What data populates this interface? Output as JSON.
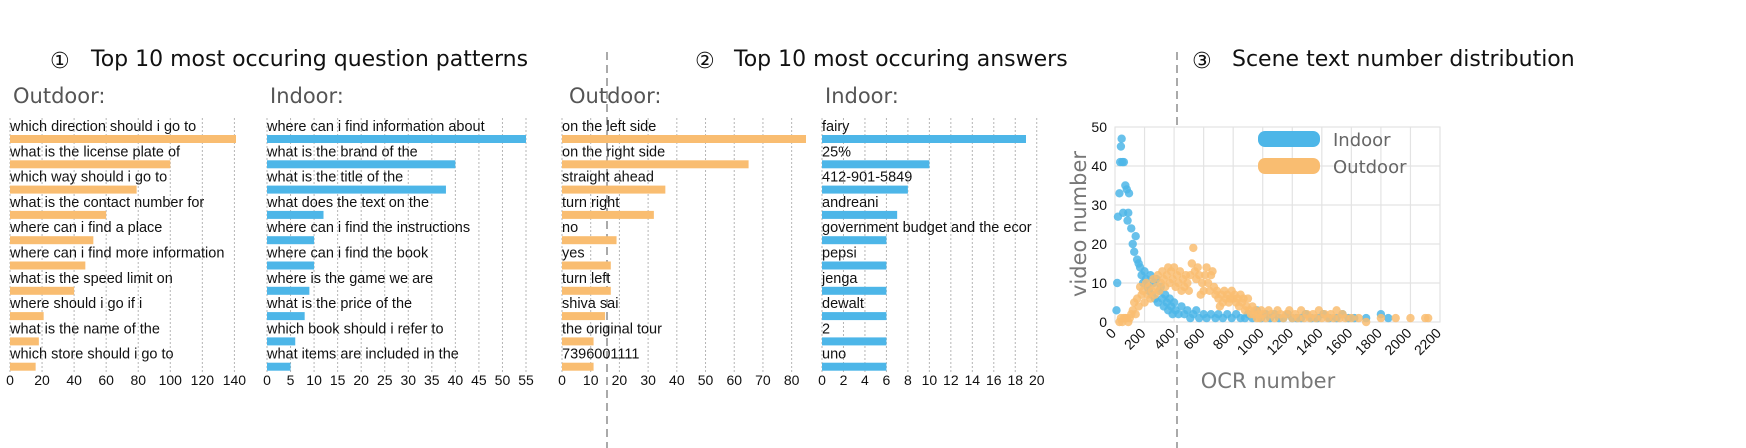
{
  "colors": {
    "outdoor": "#f9bd71",
    "indoor": "#4db6e8",
    "grid": "#b5b5b5",
    "divider": "#aaaaaa"
  },
  "panels": [
    {
      "num": "①",
      "title": "Top 10 most occuring question patterns"
    },
    {
      "num": "②",
      "title": "Top 10 most occuring answers"
    },
    {
      "num": "③",
      "title": "Scene text number distribution"
    }
  ],
  "chart_data": [
    {
      "type": "bar",
      "orientation": "horizontal",
      "group": "Outdoor:",
      "series": "Outdoor",
      "categories": [
        "which direction should i go to",
        "what is the license plate of",
        "which way should i go to",
        "what is the contact number for",
        "where can i find a place",
        "where can i find more information",
        "what is the speed limit on",
        "where should i go if i",
        "what is the name of the",
        "which store should i go to"
      ],
      "values": [
        141,
        100,
        79,
        60,
        52,
        47,
        40,
        21,
        18,
        16
      ],
      "xticks": [
        0,
        20,
        40,
        60,
        80,
        100,
        120,
        140
      ],
      "xlim": [
        0,
        150
      ]
    },
    {
      "type": "bar",
      "orientation": "horizontal",
      "group": "Indoor:",
      "series": "Indoor",
      "categories": [
        "where can i find information about",
        "what is the brand of the",
        "what is the title of the",
        "what does the text on the",
        "where can i find the instructions",
        "where can i find the book",
        "where is the game we are",
        "what is the price of the",
        "which book should i refer to",
        "what items are included in the"
      ],
      "values": [
        55,
        40,
        38,
        12,
        10,
        10,
        9,
        8,
        6,
        5
      ],
      "xticks": [
        0,
        5,
        10,
        15,
        20,
        25,
        30,
        35,
        40,
        45,
        50,
        55
      ],
      "xlim": [
        0,
        57
      ]
    },
    {
      "type": "bar",
      "orientation": "horizontal",
      "group": "Outdoor:",
      "series": "Outdoor",
      "categories": [
        "on the left side",
        "on the right side",
        "straight ahead",
        "turn right",
        "no",
        "yes",
        "turn left",
        "shiva sai",
        "the original tour",
        "7396001111"
      ],
      "values": [
        85,
        65,
        36,
        32,
        19,
        17,
        17,
        15,
        11,
        11
      ],
      "xticks": [
        0,
        10,
        20,
        30,
        40,
        50,
        60,
        70,
        80
      ],
      "xlim": [
        0,
        86
      ]
    },
    {
      "type": "bar",
      "orientation": "horizontal",
      "group": "Indoor:",
      "series": "Indoor",
      "categories": [
        "fairy",
        "25%",
        "412-901-5849",
        "andreani",
        "government budget and the ecor",
        "pepsi",
        "jenga",
        "dewalt",
        "2",
        "uno"
      ],
      "values": [
        19,
        10,
        8,
        7,
        6,
        6,
        6,
        6,
        6,
        6
      ],
      "xticks": [
        0,
        2,
        4,
        6,
        8,
        10,
        12,
        14,
        16,
        18,
        20
      ],
      "xlim": [
        0,
        20.5
      ]
    },
    {
      "type": "scatter",
      "xlabel": "OCR number",
      "ylabel": "video number",
      "xlim": [
        0,
        2200
      ],
      "ylim": [
        0,
        50
      ],
      "xticks": [
        0,
        200,
        400,
        600,
        800,
        1000,
        1200,
        1400,
        1600,
        1800,
        2000,
        2200
      ],
      "yticks": [
        0,
        10,
        20,
        30,
        40,
        50
      ],
      "legend": [
        "Indoor",
        "Outdoor"
      ],
      "legend_loc": "upper-center",
      "grid": true,
      "series": [
        {
          "name": "Indoor",
          "points": [
            [
              10,
              3
            ],
            [
              15,
              10
            ],
            [
              20,
              27
            ],
            [
              30,
              33
            ],
            [
              35,
              41
            ],
            [
              40,
              45
            ],
            [
              45,
              47
            ],
            [
              50,
              41
            ],
            [
              55,
              28
            ],
            [
              60,
              41
            ],
            [
              70,
              35
            ],
            [
              80,
              34
            ],
            [
              85,
              26
            ],
            [
              90,
              28
            ],
            [
              95,
              33
            ],
            [
              110,
              24
            ],
            [
              120,
              20
            ],
            [
              130,
              18
            ],
            [
              140,
              22
            ],
            [
              150,
              16
            ],
            [
              160,
              15
            ],
            [
              170,
              14
            ],
            [
              180,
              12
            ],
            [
              190,
              10
            ],
            [
              200,
              13
            ],
            [
              210,
              11
            ],
            [
              220,
              9
            ],
            [
              230,
              8
            ],
            [
              240,
              12
            ],
            [
              250,
              7
            ],
            [
              260,
              10
            ],
            [
              270,
              6
            ],
            [
              280,
              11
            ],
            [
              290,
              5
            ],
            [
              300,
              8
            ],
            [
              310,
              9
            ],
            [
              320,
              6
            ],
            [
              330,
              4
            ],
            [
              340,
              7
            ],
            [
              350,
              5
            ],
            [
              360,
              3
            ],
            [
              370,
              6
            ],
            [
              380,
              4
            ],
            [
              390,
              2
            ],
            [
              400,
              5
            ],
            [
              410,
              3
            ],
            [
              430,
              2
            ],
            [
              450,
              4
            ],
            [
              470,
              2
            ],
            [
              490,
              3
            ],
            [
              510,
              1
            ],
            [
              530,
              2
            ],
            [
              550,
              3
            ],
            [
              570,
              1
            ],
            [
              600,
              2
            ],
            [
              620,
              1
            ],
            [
              650,
              2
            ],
            [
              680,
              1
            ],
            [
              700,
              2
            ],
            [
              730,
              1
            ],
            [
              760,
              2
            ],
            [
              790,
              1
            ],
            [
              820,
              2
            ],
            [
              850,
              1
            ],
            [
              880,
              1
            ],
            [
              900,
              2
            ],
            [
              930,
              1
            ],
            [
              960,
              3
            ],
            [
              990,
              1
            ],
            [
              1020,
              2
            ],
            [
              1050,
              1
            ],
            [
              1080,
              2
            ],
            [
              1110,
              1
            ],
            [
              1140,
              1
            ],
            [
              1170,
              2
            ],
            [
              1200,
              1
            ],
            [
              1230,
              1
            ],
            [
              1260,
              1
            ],
            [
              1290,
              2
            ],
            [
              1330,
              1
            ],
            [
              1370,
              1
            ],
            [
              1410,
              2
            ],
            [
              1450,
              1
            ],
            [
              1500,
              1
            ],
            [
              1540,
              2
            ],
            [
              1580,
              1
            ],
            [
              1620,
              1
            ],
            [
              1700,
              1
            ],
            [
              1800,
              2
            ],
            [
              1850,
              1
            ]
          ]
        },
        {
          "name": "Outdoor",
          "points": [
            [
              30,
              0
            ],
            [
              40,
              1
            ],
            [
              50,
              0
            ],
            [
              60,
              1
            ],
            [
              70,
              1
            ],
            [
              80,
              1
            ],
            [
              90,
              0
            ],
            [
              100,
              1
            ],
            [
              110,
              2
            ],
            [
              120,
              3
            ],
            [
              130,
              5
            ],
            [
              140,
              2
            ],
            [
              150,
              6
            ],
            [
              160,
              4
            ],
            [
              170,
              9
            ],
            [
              180,
              7
            ],
            [
              190,
              8
            ],
            [
              200,
              5
            ],
            [
              210,
              10
            ],
            [
              220,
              7
            ],
            [
              230,
              9
            ],
            [
              240,
              6
            ],
            [
              250,
              8
            ],
            [
              260,
              11
            ],
            [
              270,
              7
            ],
            [
              280,
              9
            ],
            [
              290,
              12
            ],
            [
              300,
              8
            ],
            [
              310,
              10
            ],
            [
              320,
              13
            ],
            [
              330,
              11
            ],
            [
              340,
              9
            ],
            [
              350,
              12
            ],
            [
              360,
              14
            ],
            [
              370,
              10
            ],
            [
              380,
              13
            ],
            [
              390,
              11
            ],
            [
              400,
              14
            ],
            [
              410,
              9
            ],
            [
              420,
              12
            ],
            [
              430,
              10
            ],
            [
              440,
              13
            ],
            [
              450,
              8
            ],
            [
              460,
              11
            ],
            [
              470,
              9
            ],
            [
              480,
              12
            ],
            [
              490,
              10
            ],
            [
              500,
              8
            ],
            [
              510,
              12
            ],
            [
              520,
              15
            ],
            [
              530,
              19
            ],
            [
              540,
              13
            ],
            [
              550,
              11
            ],
            [
              560,
              14
            ],
            [
              570,
              12
            ],
            [
              580,
              7
            ],
            [
              590,
              10
            ],
            [
              600,
              8
            ],
            [
              610,
              12
            ],
            [
              620,
              14
            ],
            [
              630,
              10
            ],
            [
              640,
              8
            ],
            [
              650,
              12
            ],
            [
              660,
              13
            ],
            [
              670,
              9
            ],
            [
              680,
              7
            ],
            [
              690,
              8
            ],
            [
              700,
              6
            ],
            [
              710,
              4
            ],
            [
              720,
              7
            ],
            [
              730,
              5
            ],
            [
              740,
              8
            ],
            [
              750,
              6
            ],
            [
              760,
              7
            ],
            [
              770,
              5
            ],
            [
              780,
              6
            ],
            [
              790,
              8
            ],
            [
              800,
              6
            ],
            [
              810,
              7
            ],
            [
              820,
              5
            ],
            [
              830,
              6
            ],
            [
              840,
              4
            ],
            [
              850,
              7
            ],
            [
              860,
              5
            ],
            [
              870,
              6
            ],
            [
              880,
              3
            ],
            [
              890,
              4
            ],
            [
              900,
              6
            ],
            [
              910,
              3
            ],
            [
              920,
              2
            ],
            [
              930,
              4
            ],
            [
              940,
              2
            ],
            [
              950,
              3
            ],
            [
              960,
              1
            ],
            [
              970,
              2
            ],
            [
              980,
              1
            ],
            [
              990,
              3
            ],
            [
              1000,
              2
            ],
            [
              1020,
              1
            ],
            [
              1040,
              3
            ],
            [
              1060,
              2
            ],
            [
              1080,
              1
            ],
            [
              1100,
              3
            ],
            [
              1120,
              2
            ],
            [
              1140,
              1
            ],
            [
              1160,
              2
            ],
            [
              1180,
              3
            ],
            [
              1200,
              1
            ],
            [
              1220,
              2
            ],
            [
              1240,
              1
            ],
            [
              1260,
              3
            ],
            [
              1280,
              1
            ],
            [
              1300,
              2
            ],
            [
              1320,
              1
            ],
            [
              1340,
              2
            ],
            [
              1360,
              1
            ],
            [
              1380,
              3
            ],
            [
              1400,
              1
            ],
            [
              1420,
              2
            ],
            [
              1440,
              1
            ],
            [
              1460,
              2
            ],
            [
              1480,
              1
            ],
            [
              1500,
              3
            ],
            [
              1520,
              1
            ],
            [
              1540,
              2
            ],
            [
              1560,
              1
            ],
            [
              1600,
              1
            ],
            [
              1650,
              1
            ],
            [
              1700,
              0
            ],
            [
              1800,
              1
            ],
            [
              1900,
              1
            ],
            [
              2000,
              1
            ],
            [
              2100,
              1
            ],
            [
              2120,
              1
            ]
          ]
        }
      ]
    }
  ]
}
